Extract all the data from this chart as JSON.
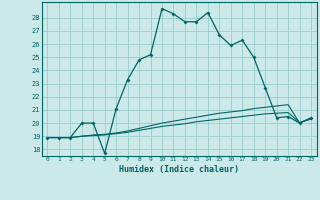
{
  "xlabel": "Humidex (Indice chaleur)",
  "bg_color": "#cce9e9",
  "grid_color": "#99cccc",
  "line_color": "#006666",
  "xlim": [
    -0.5,
    23.5
  ],
  "ylim": [
    17.5,
    29.2
  ],
  "xticks": [
    0,
    1,
    2,
    3,
    4,
    5,
    6,
    7,
    8,
    9,
    10,
    11,
    12,
    13,
    14,
    15,
    16,
    17,
    18,
    19,
    20,
    21,
    22,
    23
  ],
  "yticks": [
    18,
    19,
    20,
    21,
    22,
    23,
    24,
    25,
    26,
    27,
    28
  ],
  "series1_x": [
    0,
    1,
    2,
    3,
    4,
    5,
    6,
    7,
    8,
    9,
    10,
    11,
    12,
    13,
    14,
    15,
    16,
    17,
    18,
    19,
    20,
    21,
    22,
    23
  ],
  "series1_y": [
    18.9,
    18.9,
    18.9,
    20.0,
    20.0,
    17.7,
    21.1,
    23.3,
    24.8,
    25.2,
    28.7,
    28.3,
    27.7,
    27.7,
    28.4,
    26.7,
    25.9,
    26.3,
    25.0,
    22.7,
    20.4,
    20.5,
    20.0,
    20.4
  ],
  "series2_x": [
    0,
    1,
    2,
    3,
    4,
    5,
    6,
    7,
    8,
    9,
    10,
    11,
    12,
    13,
    14,
    15,
    16,
    17,
    18,
    19,
    20,
    21,
    22,
    23
  ],
  "series2_y": [
    18.9,
    18.9,
    18.9,
    19.0,
    19.05,
    19.1,
    19.2,
    19.3,
    19.45,
    19.6,
    19.75,
    19.85,
    19.95,
    20.1,
    20.2,
    20.3,
    20.4,
    20.5,
    20.6,
    20.7,
    20.75,
    20.8,
    20.05,
    20.3
  ],
  "series3_x": [
    0,
    1,
    2,
    3,
    4,
    5,
    6,
    7,
    8,
    9,
    10,
    11,
    12,
    13,
    14,
    15,
    16,
    17,
    18,
    19,
    20,
    21,
    22,
    23
  ],
  "series3_y": [
    18.9,
    18.9,
    18.9,
    19.0,
    19.1,
    19.15,
    19.25,
    19.4,
    19.6,
    19.8,
    20.0,
    20.15,
    20.3,
    20.45,
    20.6,
    20.75,
    20.85,
    20.95,
    21.1,
    21.2,
    21.3,
    21.4,
    20.0,
    20.4
  ]
}
